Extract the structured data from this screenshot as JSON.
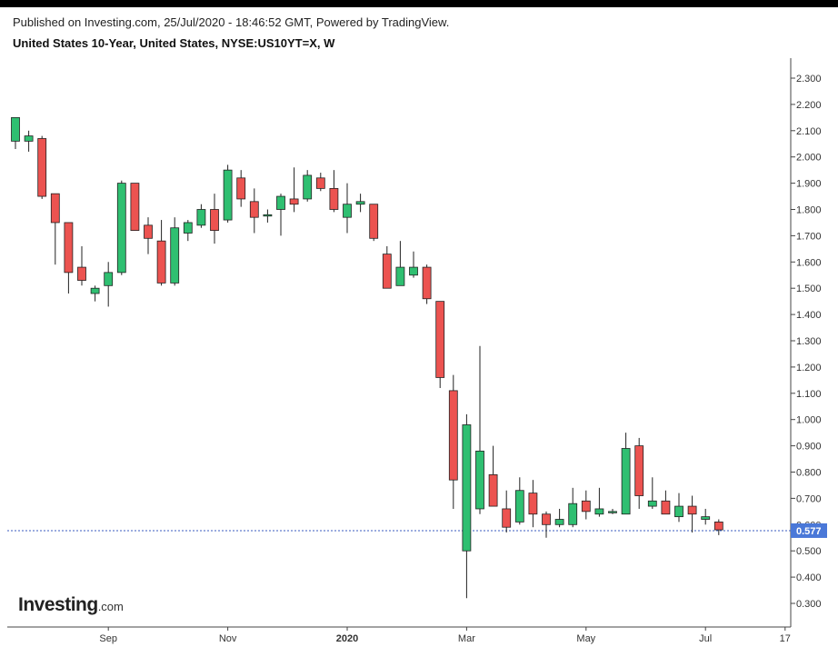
{
  "header": {
    "published": "Published on Investing.com, 25/Jul/2020 - 18:46:52 GMT, Powered by TradingView.",
    "symbol": "United States 10-Year, United States, NYSE:US10YT=X, W"
  },
  "logo": {
    "main": "Investing",
    "suffix": ".com"
  },
  "colors": {
    "up": "#2fbf71",
    "down": "#ec5350",
    "last_price_bg": "#4a78d8",
    "grid_line": "#e6e6e6"
  },
  "chart_data": {
    "type": "candlestick",
    "interval": "W",
    "y_range": [
      0.25,
      2.36
    ],
    "y_ticks": [
      "0.300",
      "0.400",
      "0.500",
      "0.600",
      "0.700",
      "0.800",
      "0.900",
      "1.000",
      "1.100",
      "1.200",
      "1.300",
      "1.400",
      "1.500",
      "1.600",
      "1.700",
      "1.800",
      "1.900",
      "2.000",
      "2.100",
      "2.200",
      "2.300"
    ],
    "x_labels": [
      {
        "label": "Sep",
        "index": 7
      },
      {
        "label": "Nov",
        "index": 16
      },
      {
        "label": "2020",
        "index": 25
      },
      {
        "label": "Mar",
        "index": 34
      },
      {
        "label": "May",
        "index": 43
      },
      {
        "label": "Jul",
        "index": 52
      },
      {
        "label": "17",
        "index": 58
      }
    ],
    "last_price": 0.577,
    "last_price_label": "0.577",
    "candles": [
      {
        "o": 2.06,
        "h": 2.15,
        "l": 2.03,
        "c": 2.15
      },
      {
        "o": 2.06,
        "h": 2.1,
        "l": 2.02,
        "c": 2.08
      },
      {
        "o": 2.07,
        "h": 2.08,
        "l": 1.84,
        "c": 1.85
      },
      {
        "o": 1.86,
        "h": 1.86,
        "l": 1.59,
        "c": 1.75
      },
      {
        "o": 1.75,
        "h": 1.75,
        "l": 1.48,
        "c": 1.56
      },
      {
        "o": 1.58,
        "h": 1.66,
        "l": 1.51,
        "c": 1.53
      },
      {
        "o": 1.48,
        "h": 1.51,
        "l": 1.45,
        "c": 1.5
      },
      {
        "o": 1.51,
        "h": 1.6,
        "l": 1.43,
        "c": 1.56
      },
      {
        "o": 1.56,
        "h": 1.91,
        "l": 1.55,
        "c": 1.9
      },
      {
        "o": 1.9,
        "h": 1.9,
        "l": 1.72,
        "c": 1.72
      },
      {
        "o": 1.74,
        "h": 1.77,
        "l": 1.63,
        "c": 1.69
      },
      {
        "o": 1.68,
        "h": 1.76,
        "l": 1.51,
        "c": 1.52
      },
      {
        "o": 1.52,
        "h": 1.77,
        "l": 1.51,
        "c": 1.73
      },
      {
        "o": 1.71,
        "h": 1.76,
        "l": 1.68,
        "c": 1.75
      },
      {
        "o": 1.74,
        "h": 1.82,
        "l": 1.73,
        "c": 1.8
      },
      {
        "o": 1.8,
        "h": 1.86,
        "l": 1.67,
        "c": 1.72
      },
      {
        "o": 1.76,
        "h": 1.97,
        "l": 1.75,
        "c": 1.95
      },
      {
        "o": 1.92,
        "h": 1.95,
        "l": 1.81,
        "c": 1.84
      },
      {
        "o": 1.83,
        "h": 1.88,
        "l": 1.71,
        "c": 1.77
      },
      {
        "o": 1.78,
        "h": 1.8,
        "l": 1.75,
        "c": 1.78
      },
      {
        "o": 1.8,
        "h": 1.86,
        "l": 1.7,
        "c": 1.85
      },
      {
        "o": 1.84,
        "h": 1.96,
        "l": 1.79,
        "c": 1.82
      },
      {
        "o": 1.84,
        "h": 1.95,
        "l": 1.83,
        "c": 1.93
      },
      {
        "o": 1.92,
        "h": 1.94,
        "l": 1.87,
        "c": 1.88
      },
      {
        "o": 1.88,
        "h": 1.95,
        "l": 1.79,
        "c": 1.8
      },
      {
        "o": 1.77,
        "h": 1.9,
        "l": 1.71,
        "c": 1.82
      },
      {
        "o": 1.82,
        "h": 1.86,
        "l": 1.79,
        "c": 1.83
      },
      {
        "o": 1.82,
        "h": 1.82,
        "l": 1.68,
        "c": 1.69
      },
      {
        "o": 1.63,
        "h": 1.66,
        "l": 1.5,
        "c": 1.5
      },
      {
        "o": 1.51,
        "h": 1.68,
        "l": 1.51,
        "c": 1.58
      },
      {
        "o": 1.55,
        "h": 1.64,
        "l": 1.54,
        "c": 1.58
      },
      {
        "o": 1.58,
        "h": 1.59,
        "l": 1.44,
        "c": 1.46
      },
      {
        "o": 1.45,
        "h": 1.45,
        "l": 1.12,
        "c": 1.16
      },
      {
        "o": 1.11,
        "h": 1.17,
        "l": 0.66,
        "c": 0.77
      },
      {
        "o": 0.5,
        "h": 1.02,
        "l": 0.32,
        "c": 0.98
      },
      {
        "o": 0.66,
        "h": 1.28,
        "l": 0.64,
        "c": 0.88
      },
      {
        "o": 0.79,
        "h": 0.9,
        "l": 0.67,
        "c": 0.67
      },
      {
        "o": 0.66,
        "h": 0.73,
        "l": 0.57,
        "c": 0.59
      },
      {
        "o": 0.61,
        "h": 0.78,
        "l": 0.6,
        "c": 0.73
      },
      {
        "o": 0.72,
        "h": 0.77,
        "l": 0.59,
        "c": 0.64
      },
      {
        "o": 0.64,
        "h": 0.65,
        "l": 0.55,
        "c": 0.6
      },
      {
        "o": 0.6,
        "h": 0.66,
        "l": 0.59,
        "c": 0.62
      },
      {
        "o": 0.6,
        "h": 0.74,
        "l": 0.59,
        "c": 0.68
      },
      {
        "o": 0.69,
        "h": 0.73,
        "l": 0.62,
        "c": 0.65
      },
      {
        "o": 0.64,
        "h": 0.74,
        "l": 0.63,
        "c": 0.66
      },
      {
        "o": 0.65,
        "h": 0.66,
        "l": 0.64,
        "c": 0.65
      },
      {
        "o": 0.64,
        "h": 0.95,
        "l": 0.64,
        "c": 0.89
      },
      {
        "o": 0.9,
        "h": 0.93,
        "l": 0.66,
        "c": 0.71
      },
      {
        "o": 0.67,
        "h": 0.78,
        "l": 0.66,
        "c": 0.69
      },
      {
        "o": 0.69,
        "h": 0.73,
        "l": 0.64,
        "c": 0.64
      },
      {
        "o": 0.63,
        "h": 0.72,
        "l": 0.61,
        "c": 0.67
      },
      {
        "o": 0.67,
        "h": 0.71,
        "l": 0.57,
        "c": 0.64
      },
      {
        "o": 0.62,
        "h": 0.66,
        "l": 0.6,
        "c": 0.63
      },
      {
        "o": 0.61,
        "h": 0.62,
        "l": 0.56,
        "c": 0.58
      }
    ]
  }
}
